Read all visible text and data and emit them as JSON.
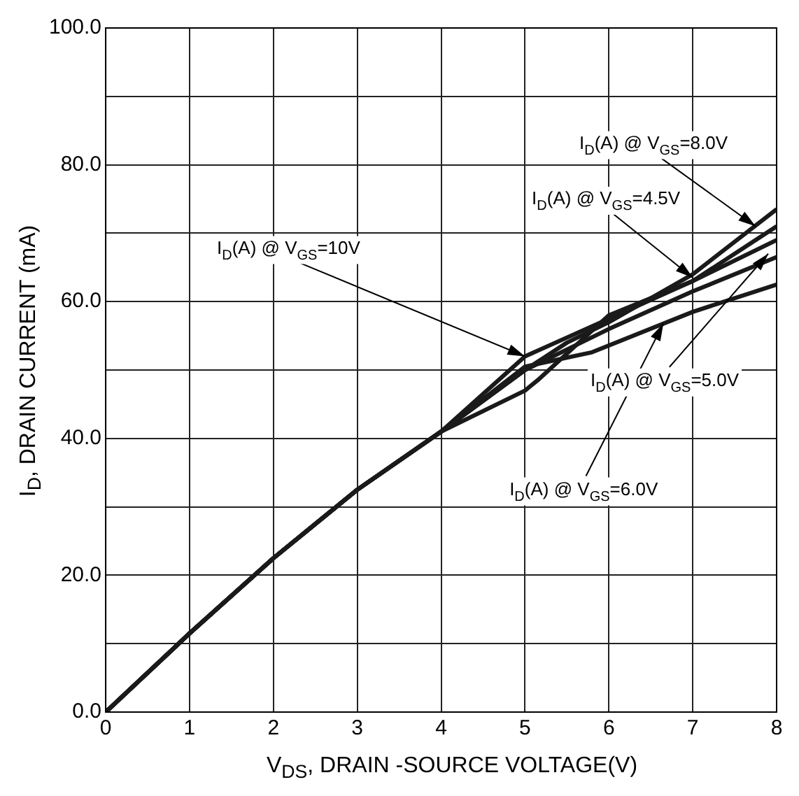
{
  "chart_data": {
    "type": "line",
    "xlabel": "V$_{DS}$, DRAIN -SOURCE VOLTAGE(V)",
    "ylabel": "I$_{D}$, DRAIN CURRENT (mA)",
    "xlim": [
      0,
      8
    ],
    "xticks": [
      0,
      1,
      2,
      3,
      4,
      5,
      6,
      7,
      8
    ],
    "ylim": [
      0,
      100
    ],
    "yticks": [
      {
        "value": 0,
        "label": "0.0"
      },
      {
        "value": 10,
        "label": null
      },
      {
        "value": 20,
        "label": "20.0"
      },
      {
        "value": 30,
        "label": null
      },
      {
        "value": 40,
        "label": "40.0"
      },
      {
        "value": 50,
        "label": null
      },
      {
        "value": 60,
        "label": "60.0"
      },
      {
        "value": 70,
        "label": null
      },
      {
        "value": 80,
        "label": "80.0"
      },
      {
        "value": 90,
        "label": null
      },
      {
        "value": 100,
        "label": "100.0"
      }
    ],
    "grid": true,
    "legend": false,
    "marker": "none",
    "line_style": "solid",
    "series": [
      {
        "color": "#1a1a1a",
        "x": [
          0,
          1,
          2,
          3,
          4,
          5,
          5.5,
          6,
          7,
          8
        ],
        "values": [
          0,
          11.5,
          22.5,
          32.5,
          41,
          50,
          54,
          57,
          64,
          73.5
        ]
      },
      {
        "color": "#1a1a1a",
        "x": [
          0,
          1,
          2,
          3,
          4,
          5,
          6,
          7,
          8
        ],
        "values": [
          0,
          11.5,
          22.5,
          32.5,
          41,
          52,
          57.5,
          63,
          71
        ]
      },
      {
        "color": "#1a1a1a",
        "x": [
          0,
          1,
          2,
          3,
          4,
          5,
          5.15,
          6,
          7,
          8
        ],
        "values": [
          0,
          11.5,
          22.5,
          32.5,
          41,
          47,
          48.5,
          58,
          63,
          69
        ]
      },
      {
        "color": "#1a1a1a",
        "x": [
          0,
          1,
          2,
          3,
          4,
          5,
          6,
          7,
          8
        ],
        "values": [
          0,
          11.5,
          22.5,
          32.5,
          41,
          50,
          56,
          61.5,
          66.5
        ]
      },
      {
        "color": "#1a1a1a",
        "x": [
          0,
          1,
          2,
          3,
          4,
          5,
          5.8,
          7,
          8
        ],
        "values": [
          0,
          11.5,
          22.5,
          32.5,
          41,
          50.5,
          52.6,
          58.5,
          62.5
        ]
      }
    ],
    "annotations": [
      {
        "text": "I$_{D}$(A) @ V$_{GS}$=8.0V",
        "x": 7.75,
        "y": 71
      },
      {
        "text": "I$_{D}$(A) @ V$_{GS}$=4.5V",
        "x": 7.0,
        "y": 63.5
      },
      {
        "text": "I$_{D}$(A) @ V$_{GS}$=10V",
        "x": 5.0,
        "y": 52
      },
      {
        "text": "I$_{D}$(A) @ V$_{GS}$=5.0V",
        "x": 7.9,
        "y": 67
      },
      {
        "text": "I$_{D}$(A) @ V$_{GS}$=6.0V",
        "x": 6.65,
        "y": 56.8
      }
    ]
  }
}
